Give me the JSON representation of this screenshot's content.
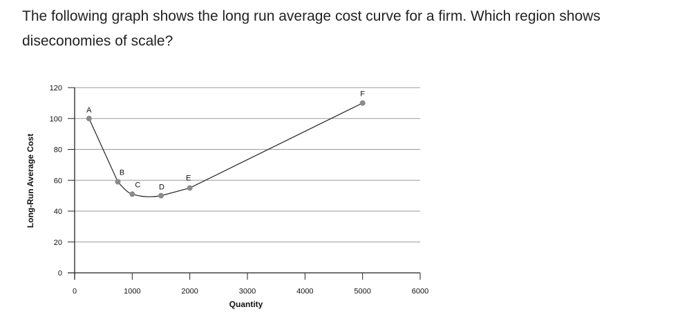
{
  "question": "The following graph shows the long run average cost curve for a firm. Which region shows diseconomies of scale?",
  "chart_data": {
    "type": "line",
    "title": "",
    "xlabel": "Quantity",
    "ylabel": "Long-Run Average Cost",
    "xlim": [
      0,
      6000
    ],
    "ylim": [
      0,
      120
    ],
    "xticks": [
      0,
      1000,
      2000,
      3000,
      4000,
      5000,
      6000
    ],
    "yticks": [
      0,
      20,
      40,
      60,
      80,
      100,
      120
    ],
    "grid": "horizontal",
    "series": [
      {
        "points": [
          {
            "label": "A",
            "x": 250,
            "y": 100
          },
          {
            "label": "B",
            "x": 750,
            "y": 59
          },
          {
            "label": "C",
            "x": 1000,
            "y": 51
          },
          {
            "label": "D",
            "x": 1500,
            "y": 50
          },
          {
            "label": "E",
            "x": 2000,
            "y": 55
          },
          {
            "label": "F",
            "x": 5000,
            "y": 110
          }
        ]
      }
    ],
    "colors": {
      "line": "#222222",
      "marker": "#8a8a8a",
      "grid": "#9a9a9a"
    }
  }
}
